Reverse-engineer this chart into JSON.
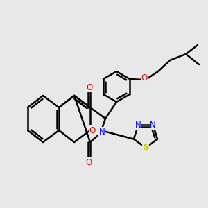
{
  "background_color": "#e8e8e8",
  "line_color": "#000000",
  "bond_width": 1.8,
  "atom_colors": {
    "O": "#ff0000",
    "N": "#0000ff",
    "S": "#cccc00",
    "C": "#000000"
  },
  "figsize": [
    3.0,
    3.0
  ],
  "dpi": 100
}
